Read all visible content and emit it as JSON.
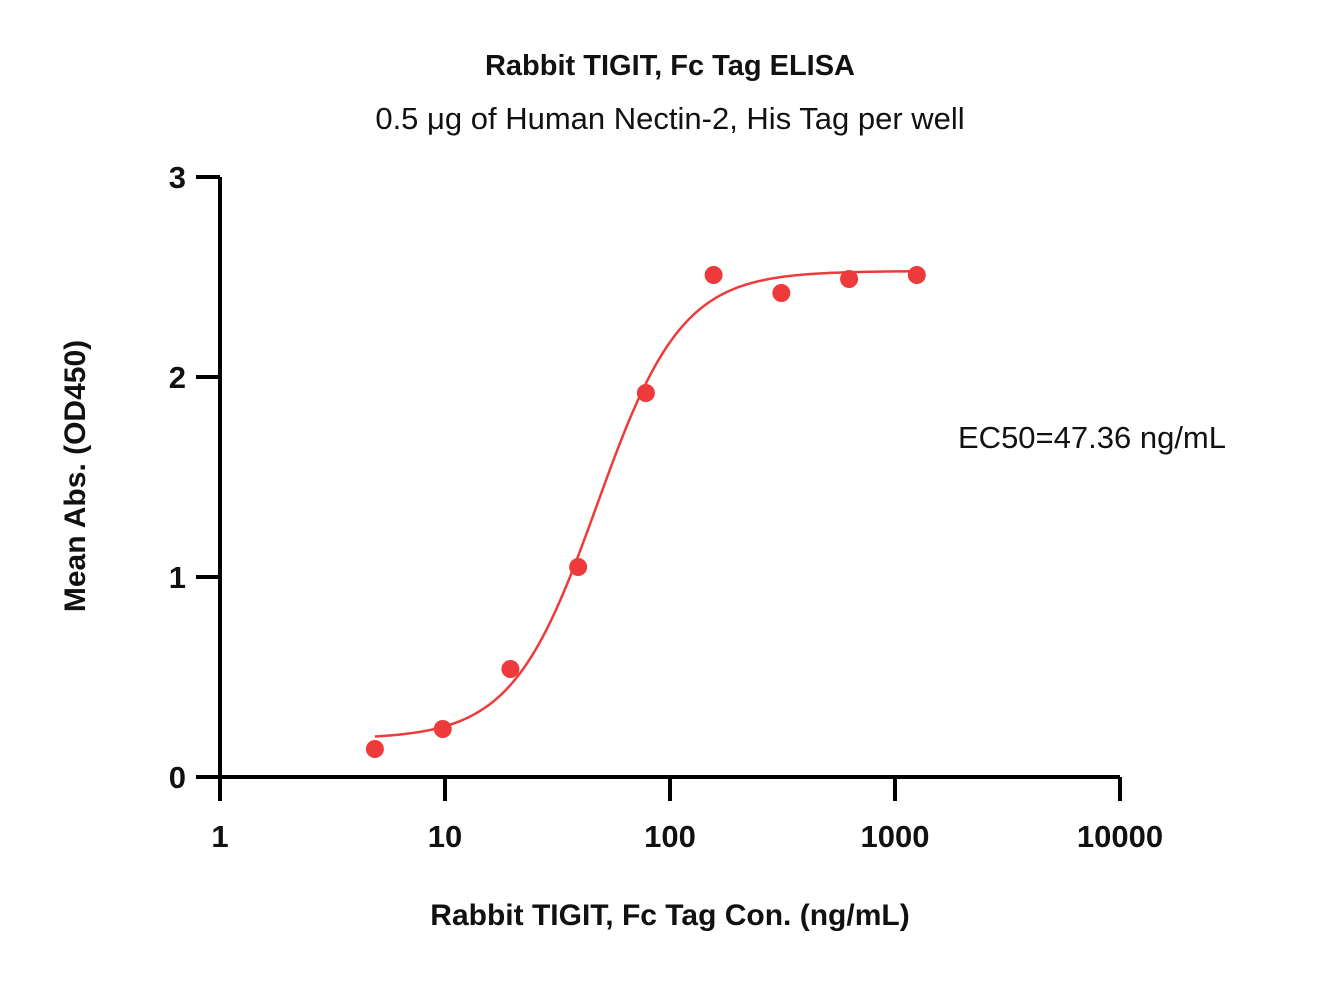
{
  "chart_data": {
    "type": "scatter",
    "title": "Rabbit TIGIT, Fc Tag ELISA",
    "subtitle": "0.5 μg of Human Nectin-2, His Tag per well",
    "xlabel": "Rabbit TIGIT, Fc Tag Con. (ng/mL)",
    "ylabel": "Mean Abs. (OD450)",
    "xscale": "log",
    "xlim": [
      1,
      10000
    ],
    "ylim": [
      0,
      3
    ],
    "xticks": [
      "1",
      "10",
      "100",
      "1000",
      "10000"
    ],
    "xtick_values": [
      1,
      10,
      100,
      1000,
      10000
    ],
    "yticks": [
      "0",
      "1",
      "2",
      "3"
    ],
    "ytick_values": [
      0,
      1,
      2,
      3
    ],
    "grid": false,
    "annotation": "EC50=47.36 ng/mL",
    "colors": {
      "series": "#ee3a3a",
      "axis": "#000000"
    },
    "series": [
      {
        "points": [
          {
            "x": 4.88,
            "y": 0.14
          },
          {
            "x": 9.77,
            "y": 0.24
          },
          {
            "x": 19.53,
            "y": 0.54
          },
          {
            "x": 39.06,
            "y": 1.05
          },
          {
            "x": 78.13,
            "y": 1.92
          },
          {
            "x": 156.25,
            "y": 2.51
          },
          {
            "x": 312.5,
            "y": 2.42
          },
          {
            "x": 625,
            "y": 2.49
          },
          {
            "x": 1250,
            "y": 2.51
          }
        ],
        "fit": {
          "model": "4PL",
          "bottom": 0.19,
          "top": 2.53,
          "ec50": 47.36,
          "hill": 2.3,
          "xrange": [
            4.88,
            1250
          ]
        }
      }
    ]
  }
}
